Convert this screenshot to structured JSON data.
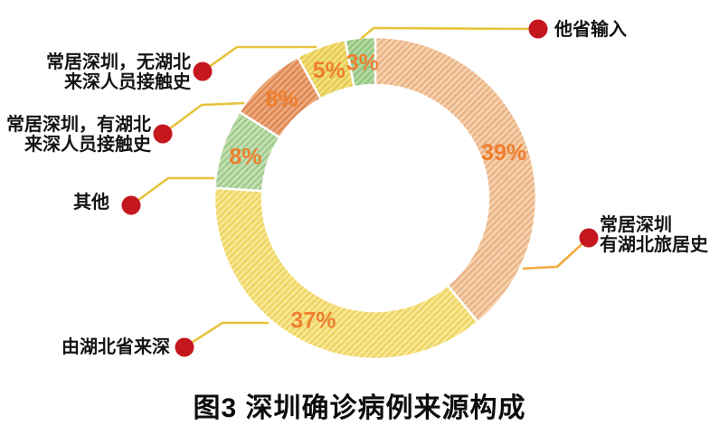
{
  "title": "图3 深圳确诊病例来源构成",
  "colors": {
    "background": "#ffffff",
    "label_text": "#141414",
    "percent_label": "#ee7f30",
    "dot": "#c5171e",
    "leader": "#e7c33c"
  },
  "chart_data": {
    "type": "pie",
    "subtype": "donut",
    "title": "图3 深圳确诊病例来源构成",
    "unit": "%",
    "direction": "clockwise",
    "start_angle_deg": 0,
    "legend_position": "callouts",
    "segments": [
      {
        "label": "常居深圳 有湖北旅居史",
        "value": 39,
        "percent_label": "39%",
        "color": "#f6d2ab",
        "hatch_color": "#e9b086"
      },
      {
        "label": "由湖北省来深",
        "value": 37,
        "percent_label": "37%",
        "color": "#f8e795",
        "hatch_color": "#ecd35f"
      },
      {
        "label": "其他",
        "value": 8,
        "percent_label": "8%",
        "color": "#c6e0b4",
        "hatch_color": "#9cc98a"
      },
      {
        "label": "常居深圳，有湖北来深人员接触史",
        "value": 8,
        "percent_label": "8%",
        "color": "#edaa7e",
        "hatch_color": "#dd8551"
      },
      {
        "label": "常居深圳，无湖北来深人员接触史",
        "value": 5,
        "percent_label": "5%",
        "color": "#f3e07f",
        "hatch_color": "#e5c94e"
      },
      {
        "label": "他省输入",
        "value": 3,
        "percent_label": "3%",
        "color": "#b7d8a6",
        "hatch_color": "#8dc47b"
      }
    ]
  },
  "callouts": [
    {
      "lines": [
        "常居深圳",
        "有湖北旅居史"
      ],
      "side": "right",
      "leader_color": "#f2a93c"
    },
    {
      "lines": [
        "由湖北省来深"
      ],
      "side": "left",
      "leader_color": "#e7c33c"
    },
    {
      "lines": [
        "其他"
      ],
      "side": "left",
      "leader_color": "#e7c33c"
    },
    {
      "lines": [
        "常居深圳，有湖北",
        "来深人员接触史"
      ],
      "side": "left",
      "leader_color": "#e7c33c"
    },
    {
      "lines": [
        "常居深圳，无湖北",
        "来深人员接触史"
      ],
      "side": "left",
      "leader_color": "#e7c33c"
    },
    {
      "lines": [
        "他省输入"
      ],
      "side": "right",
      "leader_color": "#e7c33c"
    }
  ]
}
